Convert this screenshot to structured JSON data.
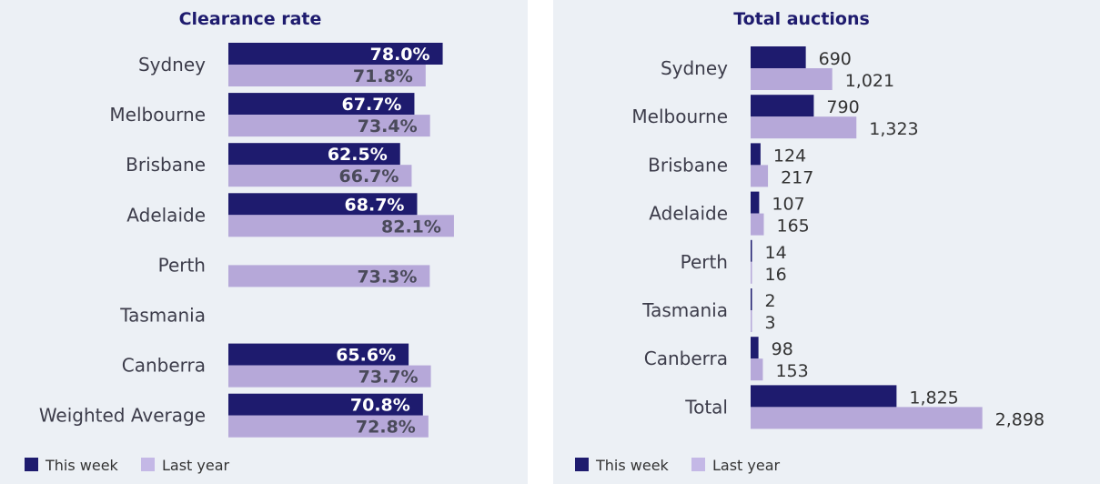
{
  "colors": {
    "this_week": "#1e1b6e",
    "last_year": "#b6a8d9",
    "background": "#ecf0f5"
  },
  "chart_data": [
    {
      "type": "bar",
      "orientation": "horizontal",
      "title": "Clearance rate",
      "categories": [
        "Sydney",
        "Melbourne",
        "Brisbane",
        "Adelaide",
        "Perth",
        "Tasmania",
        "Canberra",
        "Weighted Average"
      ],
      "series": [
        {
          "name": "This week",
          "values": [
            78.0,
            67.7,
            62.5,
            68.7,
            null,
            null,
            65.6,
            70.8
          ],
          "labels": [
            "78.0%",
            "67.7%",
            "62.5%",
            "68.7%",
            "",
            "",
            "65.6%",
            "70.8%"
          ]
        },
        {
          "name": "Last year",
          "values": [
            71.8,
            73.4,
            66.7,
            82.1,
            73.3,
            null,
            73.7,
            72.8
          ],
          "labels": [
            "71.8%",
            "73.4%",
            "66.7%",
            "82.1%",
            "73.3%",
            "",
            "73.7%",
            "72.8%"
          ]
        }
      ],
      "xlim": [
        0,
        100
      ],
      "label_position": "inside-end",
      "legend": "bottom-left",
      "grid": false
    },
    {
      "type": "bar",
      "orientation": "horizontal",
      "title": "Total auctions",
      "categories": [
        "Sydney",
        "Melbourne",
        "Brisbane",
        "Adelaide",
        "Perth",
        "Tasmania",
        "Canberra",
        "Total"
      ],
      "series": [
        {
          "name": "This week",
          "values": [
            690,
            790,
            124,
            107,
            14,
            2,
            98,
            1825
          ],
          "labels": [
            "690",
            "790",
            "124",
            "107",
            "14",
            "2",
            "98",
            "1,825"
          ]
        },
        {
          "name": "Last year",
          "values": [
            1021,
            1323,
            217,
            165,
            16,
            3,
            153,
            2898
          ],
          "labels": [
            "1,021",
            "1,323",
            "217",
            "165",
            "16",
            "3",
            "153",
            "2,898"
          ]
        }
      ],
      "xlim": [
        0,
        3300
      ],
      "label_position": "outside-end",
      "legend": "bottom-left",
      "grid": false
    }
  ]
}
